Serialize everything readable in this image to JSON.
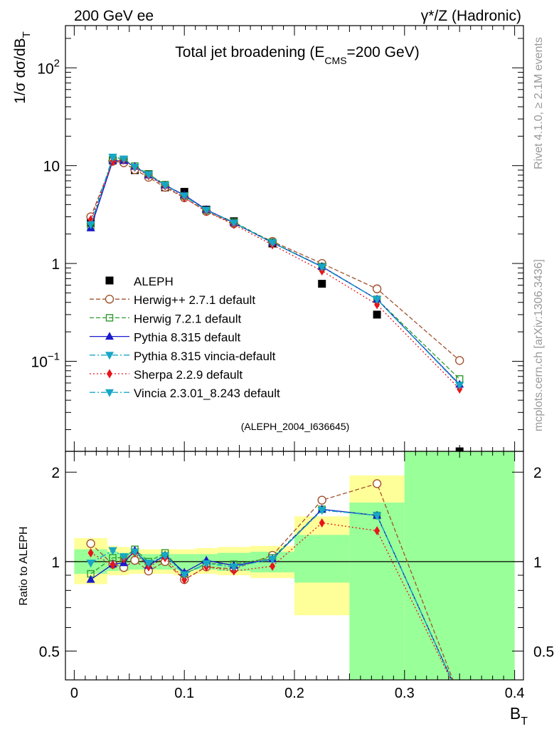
{
  "header": {
    "left": "200 GeV ee",
    "right": "γ*/Z (Hadronic)"
  },
  "side_labels": {
    "top": "Rivet 4.1.0, ≥ 2.1M events",
    "bottom": "mcplots.cern.ch [arXiv:1306.3436]"
  },
  "colors": {
    "data": "#000000",
    "herwigpp": "#a0522d",
    "herwig7": "#2e9b2e",
    "pythia": "#1a1acc",
    "vincia": "#17a6c6",
    "sherpa": "#e8141a",
    "band_inner": "#99ff99",
    "band_outer": "#ffff99"
  },
  "chart_data": [
    {
      "type": "line",
      "title": "Total jet broadening (E_CMS=200 GeV)",
      "title_main": "Total jet broadening (E",
      "title_sub": "CMS",
      "title_end": "=200 GeV)",
      "ylabel": "1/σ  dσ/dB_T",
      "ylabel_main": "1/σ  dσ/dB",
      "ylabel_sub": "T",
      "yscale": "log",
      "ylim": [
        0.012,
        270
      ],
      "xlim": [
        -0.008,
        0.408
      ],
      "y_ticks": [
        {
          "value": 0.1,
          "base": "10",
          "exp": "−1"
        },
        {
          "value": 1,
          "label": "1"
        },
        {
          "value": 10,
          "label": "10"
        },
        {
          "value": 100,
          "base": "10",
          "exp": "2"
        }
      ],
      "watermark": "(ALEPH_2004_I636645)",
      "legend_position": "lower-left",
      "x": [
        0.015,
        0.035,
        0.045,
        0.055,
        0.0675,
        0.0825,
        0.1,
        0.12,
        0.145,
        0.18,
        0.225,
        0.275,
        0.35
      ],
      "series": [
        {
          "name": "ALEPH",
          "key": "data",
          "marker": "square",
          "dash": "none",
          "values": [
            2.6,
            11.3,
            11.2,
            9.0,
            8.2,
            6.0,
            5.4,
            3.55,
            2.7,
            1.6,
            0.62,
            0.3,
            0.012
          ]
        },
        {
          "name": "Herwig++ 2.7.1 default",
          "key": "herwigpp",
          "marker": "circle-open",
          "dash": "6,3",
          "values": [
            3.0,
            11.1,
            10.7,
            9.1,
            7.6,
            6.0,
            4.7,
            3.4,
            2.55,
            1.68,
            1.0,
            0.55,
            0.102
          ]
        },
        {
          "name": "Herwig 7.2.1 default",
          "key": "herwig7",
          "marker": "square-open",
          "dash": "6,3",
          "values": [
            2.4,
            11.6,
            11.6,
            9.9,
            8.2,
            6.4,
            4.9,
            3.5,
            2.65,
            1.65,
            0.93,
            0.43,
            0.066
          ]
        },
        {
          "name": "Pythia 8.315 default",
          "key": "pythia",
          "marker": "triangle-up",
          "dash": "none",
          "values": [
            2.3,
            11.2,
            11.2,
            9.8,
            8.0,
            6.3,
            5.0,
            3.55,
            2.6,
            1.63,
            0.93,
            0.43,
            0.058
          ]
        },
        {
          "name": "Pythia 8.315 vincia-default",
          "key": "vincia",
          "marker": "triangle-down",
          "dash": "8,3,2,3",
          "values": [
            2.5,
            12.3,
            11.7,
            9.7,
            8.1,
            6.3,
            4.9,
            3.5,
            2.6,
            1.63,
            0.92,
            0.43,
            0.057
          ]
        },
        {
          "name": "Sherpa 2.2.9 default",
          "key": "sherpa",
          "marker": "diamond",
          "dash": "2,3",
          "values": [
            2.8,
            11.0,
            11.4,
            9.6,
            7.9,
            6.2,
            4.7,
            3.4,
            2.5,
            1.55,
            0.84,
            0.38,
            0.052
          ]
        },
        {
          "name": "Vincia 2.3.01_8.243 default",
          "key": "vincia",
          "marker": "triangle-down",
          "dash": "8,3,2,3",
          "values": [
            2.5,
            12.2,
            11.7,
            9.7,
            8.1,
            6.3,
            4.9,
            3.5,
            2.6,
            1.63,
            0.92,
            0.43,
            0.057
          ]
        }
      ]
    },
    {
      "type": "line",
      "title": "Ratio to ALEPH",
      "ylabel": "Ratio to ALEPH",
      "xlabel": "B_T",
      "xlabel_main": "B",
      "xlabel_sub": "T",
      "yscale": "log",
      "ylim": [
        0.4,
        2.35
      ],
      "xlim": [
        -0.008,
        0.408
      ],
      "reference_line": 1,
      "y_ticks": [
        {
          "value": 0.5,
          "label": "0.5"
        },
        {
          "value": 1,
          "label": "1"
        },
        {
          "value": 2,
          "label": "2"
        }
      ],
      "x_ticks": [
        {
          "value": 0,
          "label": "0"
        },
        {
          "value": 0.1,
          "label": "0.1"
        },
        {
          "value": 0.2,
          "label": "0.2"
        },
        {
          "value": 0.3,
          "label": "0.3"
        },
        {
          "value": 0.4,
          "label": "0.4"
        }
      ],
      "uncertainty_bands": [
        {
          "x": [
            0.0,
            0.03
          ],
          "inner": [
            0.91,
            1.1
          ],
          "outer": [
            0.84,
            1.2
          ]
        },
        {
          "x": [
            0.03,
            0.04
          ],
          "inner": [
            0.93,
            1.08
          ],
          "outer": [
            0.9,
            1.13
          ]
        },
        {
          "x": [
            0.04,
            0.05
          ],
          "inner": [
            0.93,
            1.07
          ],
          "outer": [
            0.9,
            1.12
          ]
        },
        {
          "x": [
            0.05,
            0.06
          ],
          "inner": [
            0.94,
            1.07
          ],
          "outer": [
            0.91,
            1.11
          ]
        },
        {
          "x": [
            0.06,
            0.075
          ],
          "inner": [
            0.94,
            1.06
          ],
          "outer": [
            0.91,
            1.1
          ]
        },
        {
          "x": [
            0.075,
            0.09
          ],
          "inner": [
            0.94,
            1.06
          ],
          "outer": [
            0.91,
            1.1
          ]
        },
        {
          "x": [
            0.09,
            0.11
          ],
          "inner": [
            0.94,
            1.06
          ],
          "outer": [
            0.9,
            1.1
          ]
        },
        {
          "x": [
            0.11,
            0.13
          ],
          "inner": [
            0.94,
            1.06
          ],
          "outer": [
            0.91,
            1.11
          ]
        },
        {
          "x": [
            0.13,
            0.16
          ],
          "inner": [
            0.93,
            1.07
          ],
          "outer": [
            0.9,
            1.12
          ]
        },
        {
          "x": [
            0.16,
            0.2
          ],
          "inner": [
            0.92,
            1.08
          ],
          "outer": [
            0.88,
            1.13
          ]
        },
        {
          "x": [
            0.2,
            0.25
          ],
          "inner": [
            0.85,
            1.23
          ],
          "outer": [
            0.66,
            1.42
          ]
        },
        {
          "x": [
            0.25,
            0.3
          ],
          "inner": [
            0.35,
            1.58
          ],
          "outer": [
            0.3,
            1.95
          ]
        },
        {
          "x": [
            0.3,
            0.4
          ],
          "inner": [
            0.3,
            2.4
          ],
          "outer": [
            0.3,
            2.4
          ]
        }
      ],
      "x": [
        0.015,
        0.035,
        0.045,
        0.055,
        0.0675,
        0.0825,
        0.1,
        0.12,
        0.145,
        0.18,
        0.225,
        0.275,
        0.35
      ],
      "series": [
        {
          "name": "Herwig++ 2.7.1 default",
          "key": "herwigpp",
          "marker": "circle-open",
          "dash": "6,3",
          "values": [
            1.15,
            0.98,
            0.955,
            1.01,
            0.93,
            1.0,
            0.87,
            0.96,
            0.945,
            1.05,
            1.61,
            1.83,
            0.35
          ]
        },
        {
          "name": "Herwig 7.2.1 default",
          "key": "herwig7",
          "marker": "square-open",
          "dash": "6,3",
          "values": [
            0.91,
            1.03,
            1.03,
            1.1,
            1.0,
            1.07,
            0.91,
            0.985,
            0.98,
            1.03,
            1.5,
            1.43,
            0.35
          ]
        },
        {
          "name": "Pythia 8.315 default",
          "key": "pythia",
          "marker": "triangle-up",
          "dash": "none",
          "values": [
            0.87,
            0.98,
            0.99,
            1.09,
            0.97,
            1.05,
            0.92,
            1.01,
            0.97,
            1.02,
            1.5,
            1.43,
            0.35
          ]
        },
        {
          "name": "Pythia 8.315 vincia-default",
          "key": "vincia",
          "marker": "triangle-down",
          "dash": "8,3,2,3",
          "values": [
            0.99,
            1.09,
            1.04,
            1.08,
            0.99,
            1.05,
            0.905,
            0.985,
            0.96,
            1.02,
            1.49,
            1.43,
            0.35
          ]
        },
        {
          "name": "Sherpa 2.2.9 default",
          "key": "sherpa",
          "marker": "diamond",
          "dash": "2,3",
          "values": [
            1.07,
            0.975,
            1.02,
            1.07,
            0.96,
            1.03,
            0.87,
            0.96,
            0.93,
            0.965,
            1.35,
            1.27,
            0.35
          ]
        },
        {
          "name": "Vincia 2.3.01_8.243 default",
          "key": "vincia",
          "marker": "triangle-down",
          "dash": "8,3,2,3",
          "values": [
            0.99,
            1.09,
            1.04,
            1.08,
            0.99,
            1.05,
            0.905,
            0.985,
            0.96,
            1.02,
            1.49,
            1.43,
            0.35
          ]
        }
      ]
    }
  ]
}
